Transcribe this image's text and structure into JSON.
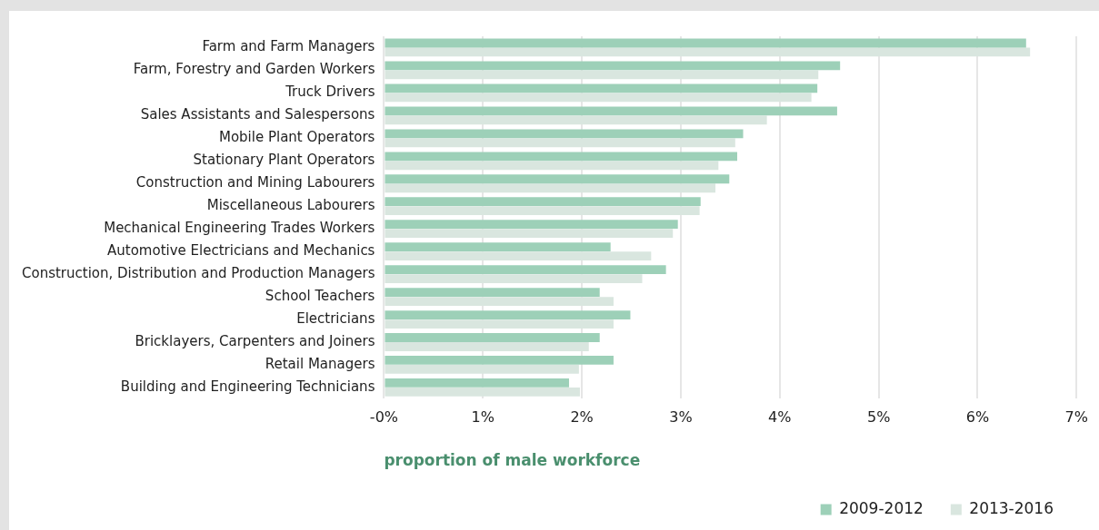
{
  "chart_data": {
    "type": "bar",
    "orientation": "horizontal",
    "xlabel": "proportion of male workforce",
    "categories": [
      "Farm and Farm Managers",
      "Farm, Forestry and Garden Workers",
      "Truck Drivers",
      "Sales Assistants and Salespersons",
      "Mobile Plant Operators",
      "Stationary Plant Operators",
      "Construction and Mining Labourers",
      "Miscellaneous Labourers",
      "Mechanical Engineering Trades Workers",
      "Automotive Electricians and Mechanics",
      "Construction, Distribution and Production Managers",
      "School Teachers",
      "Electricians",
      "Bricklayers, Carpenters and Joiners",
      "Retail Managers",
      "Building and Engineering Technicians"
    ],
    "series": [
      {
        "name": "2009-2012",
        "color": "#9dd0b8",
        "values": [
          6.49,
          4.61,
          4.38,
          4.58,
          3.63,
          3.57,
          3.49,
          3.2,
          2.97,
          2.29,
          2.85,
          2.18,
          2.49,
          2.18,
          2.32,
          1.87
        ]
      },
      {
        "name": "2013-2016",
        "color": "#d9e6df",
        "values": [
          6.53,
          4.39,
          4.32,
          3.87,
          3.55,
          3.38,
          3.35,
          3.19,
          2.92,
          2.7,
          2.61,
          2.32,
          2.32,
          2.07,
          1.97,
          1.98
        ]
      }
    ],
    "xlim": [
      0,
      7
    ],
    "xticks": [
      {
        "value": 0,
        "label": "-0%"
      },
      {
        "value": 1,
        "label": "1%"
      },
      {
        "value": 2,
        "label": "2%"
      },
      {
        "value": 3,
        "label": "3%"
      },
      {
        "value": 4,
        "label": "4%"
      },
      {
        "value": 5,
        "label": "5%"
      },
      {
        "value": 6,
        "label": "6%"
      },
      {
        "value": 7,
        "label": "7%"
      }
    ],
    "grid": "x",
    "legend": "bottom right"
  }
}
